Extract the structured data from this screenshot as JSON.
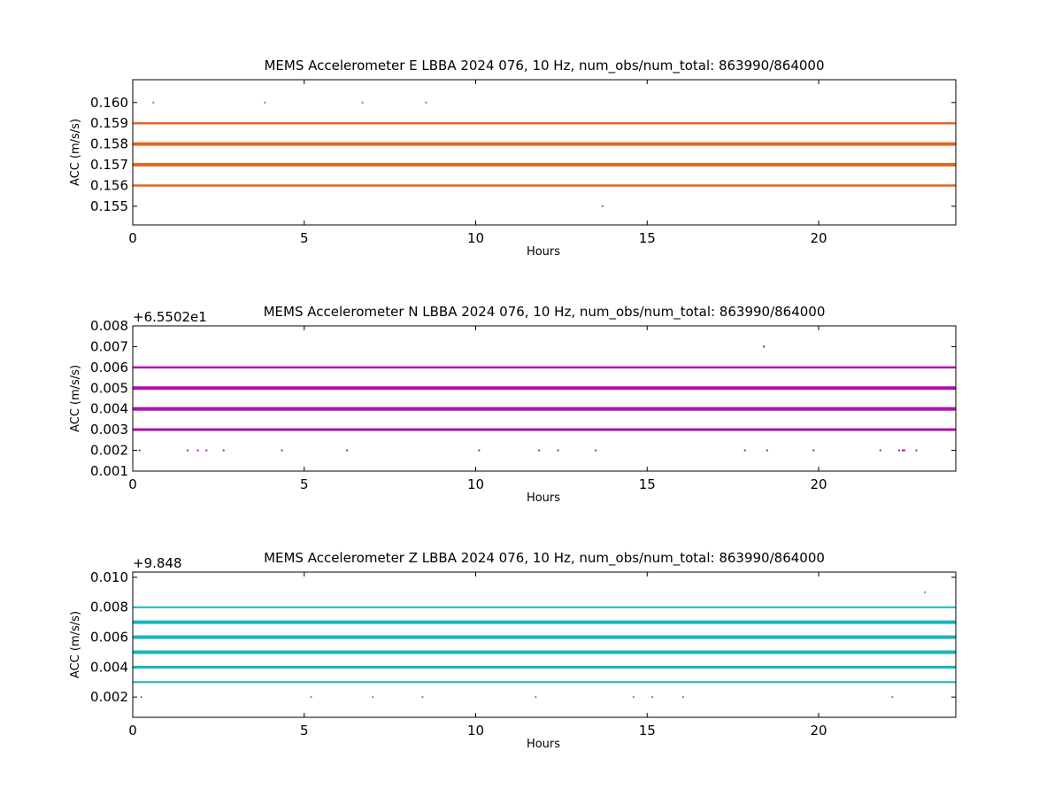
{
  "chart_data": [
    {
      "type": "scatter",
      "title": "MEMS Accelerometer E LBBA 2024 076, 10 Hz, num_obs/num_total: 863990/864000",
      "xlabel": "Hours",
      "ylabel": "ACC (m/s/s)",
      "offset_label": "",
      "color": "#e06a1f",
      "xlim": [
        0,
        24
      ],
      "ylim": [
        0.1541,
        0.1611
      ],
      "xticks": [
        0,
        5,
        10,
        15,
        20
      ],
      "xtick_labels": [
        "0",
        "5",
        "10",
        "15",
        "20"
      ],
      "yticks": [
        0.155,
        0.156,
        0.157,
        0.158,
        0.159,
        0.16
      ],
      "ytick_labels": [
        "0.155",
        "0.156",
        "0.157",
        "0.158",
        "0.159",
        "0.160"
      ],
      "bands": [
        {
          "y": 0.159,
          "weight": 2.5
        },
        {
          "y": 0.158,
          "weight": 4
        },
        {
          "y": 0.157,
          "weight": 4
        },
        {
          "y": 0.156,
          "weight": 2.5
        }
      ],
      "points": [
        {
          "x": 0.6,
          "y": 0.16
        },
        {
          "x": 3.85,
          "y": 0.16
        },
        {
          "x": 6.7,
          "y": 0.16
        },
        {
          "x": 8.55,
          "y": 0.16
        },
        {
          "x": 13.7,
          "y": 0.155
        }
      ]
    },
    {
      "type": "scatter",
      "title": "MEMS Accelerometer N LBBA 2024 076, 10 Hz, num_obs/num_total: 863990/864000",
      "xlabel": "Hours",
      "ylabel": "ACC (m/s/s)",
      "offset_label": "+6.5502e1",
      "color": "#b010b0",
      "xlim": [
        0,
        24
      ],
      "ylim": [
        0.001,
        0.008
      ],
      "xticks": [
        0,
        5,
        10,
        15,
        20
      ],
      "xtick_labels": [
        "0",
        "5",
        "10",
        "15",
        "20"
      ],
      "yticks": [
        0.001,
        0.002,
        0.003,
        0.004,
        0.005,
        0.006,
        0.007,
        0.008
      ],
      "ytick_labels": [
        "0.001",
        "0.002",
        "0.003",
        "0.004",
        "0.005",
        "0.006",
        "0.007",
        "0.008"
      ],
      "bands": [
        {
          "y": 0.006,
          "weight": 2.5
        },
        {
          "y": 0.005,
          "weight": 4
        },
        {
          "y": 0.004,
          "weight": 4
        },
        {
          "y": 0.003,
          "weight": 3
        }
      ],
      "points": [
        {
          "x": 18.4,
          "y": 0.007
        },
        {
          "x": 0.2,
          "y": 0.002
        },
        {
          "x": 1.6,
          "y": 0.002
        },
        {
          "x": 1.9,
          "y": 0.002
        },
        {
          "x": 2.15,
          "y": 0.002
        },
        {
          "x": 2.65,
          "y": 0.002
        },
        {
          "x": 4.35,
          "y": 0.002
        },
        {
          "x": 6.25,
          "y": 0.002
        },
        {
          "x": 10.1,
          "y": 0.002
        },
        {
          "x": 11.85,
          "y": 0.002
        },
        {
          "x": 12.4,
          "y": 0.002
        },
        {
          "x": 13.5,
          "y": 0.002
        },
        {
          "x": 17.85,
          "y": 0.002
        },
        {
          "x": 18.5,
          "y": 0.002
        },
        {
          "x": 19.85,
          "y": 0.002
        },
        {
          "x": 21.8,
          "y": 0.002
        },
        {
          "x": 22.35,
          "y": 0.002
        },
        {
          "x": 22.45,
          "y": 0.002
        },
        {
          "x": 22.5,
          "y": 0.002
        },
        {
          "x": 22.85,
          "y": 0.002
        }
      ]
    },
    {
      "type": "scatter",
      "title": "MEMS Accelerometer Z LBBA 2024 076, 10 Hz, num_obs/num_total: 863990/864000",
      "xlabel": "Hours",
      "ylabel": "ACC (m/s/s)",
      "offset_label": "+9.848",
      "color": "#16b6b6",
      "xlim": [
        0,
        24
      ],
      "ylim": [
        0.00065,
        0.01035
      ],
      "xticks": [
        0,
        5,
        10,
        15,
        20
      ],
      "xtick_labels": [
        "0",
        "5",
        "10",
        "15",
        "20"
      ],
      "yticks": [
        0.002,
        0.004,
        0.006,
        0.008,
        0.01
      ],
      "ytick_labels": [
        "0.002",
        "0.004",
        "0.006",
        "0.008",
        "0.010"
      ],
      "bands": [
        {
          "y": 0.008,
          "weight": 2
        },
        {
          "y": 0.007,
          "weight": 4
        },
        {
          "y": 0.006,
          "weight": 4
        },
        {
          "y": 0.005,
          "weight": 4
        },
        {
          "y": 0.004,
          "weight": 3
        },
        {
          "y": 0.003,
          "weight": 2
        }
      ],
      "points": [
        {
          "x": 23.1,
          "y": 0.009
        },
        {
          "x": 0.25,
          "y": 0.002
        },
        {
          "x": 5.2,
          "y": 0.002
        },
        {
          "x": 7.0,
          "y": 0.002
        },
        {
          "x": 8.45,
          "y": 0.002
        },
        {
          "x": 11.75,
          "y": 0.002
        },
        {
          "x": 14.6,
          "y": 0.002
        },
        {
          "x": 15.15,
          "y": 0.002
        },
        {
          "x": 16.05,
          "y": 0.002
        },
        {
          "x": 22.15,
          "y": 0.002
        }
      ]
    }
  ]
}
